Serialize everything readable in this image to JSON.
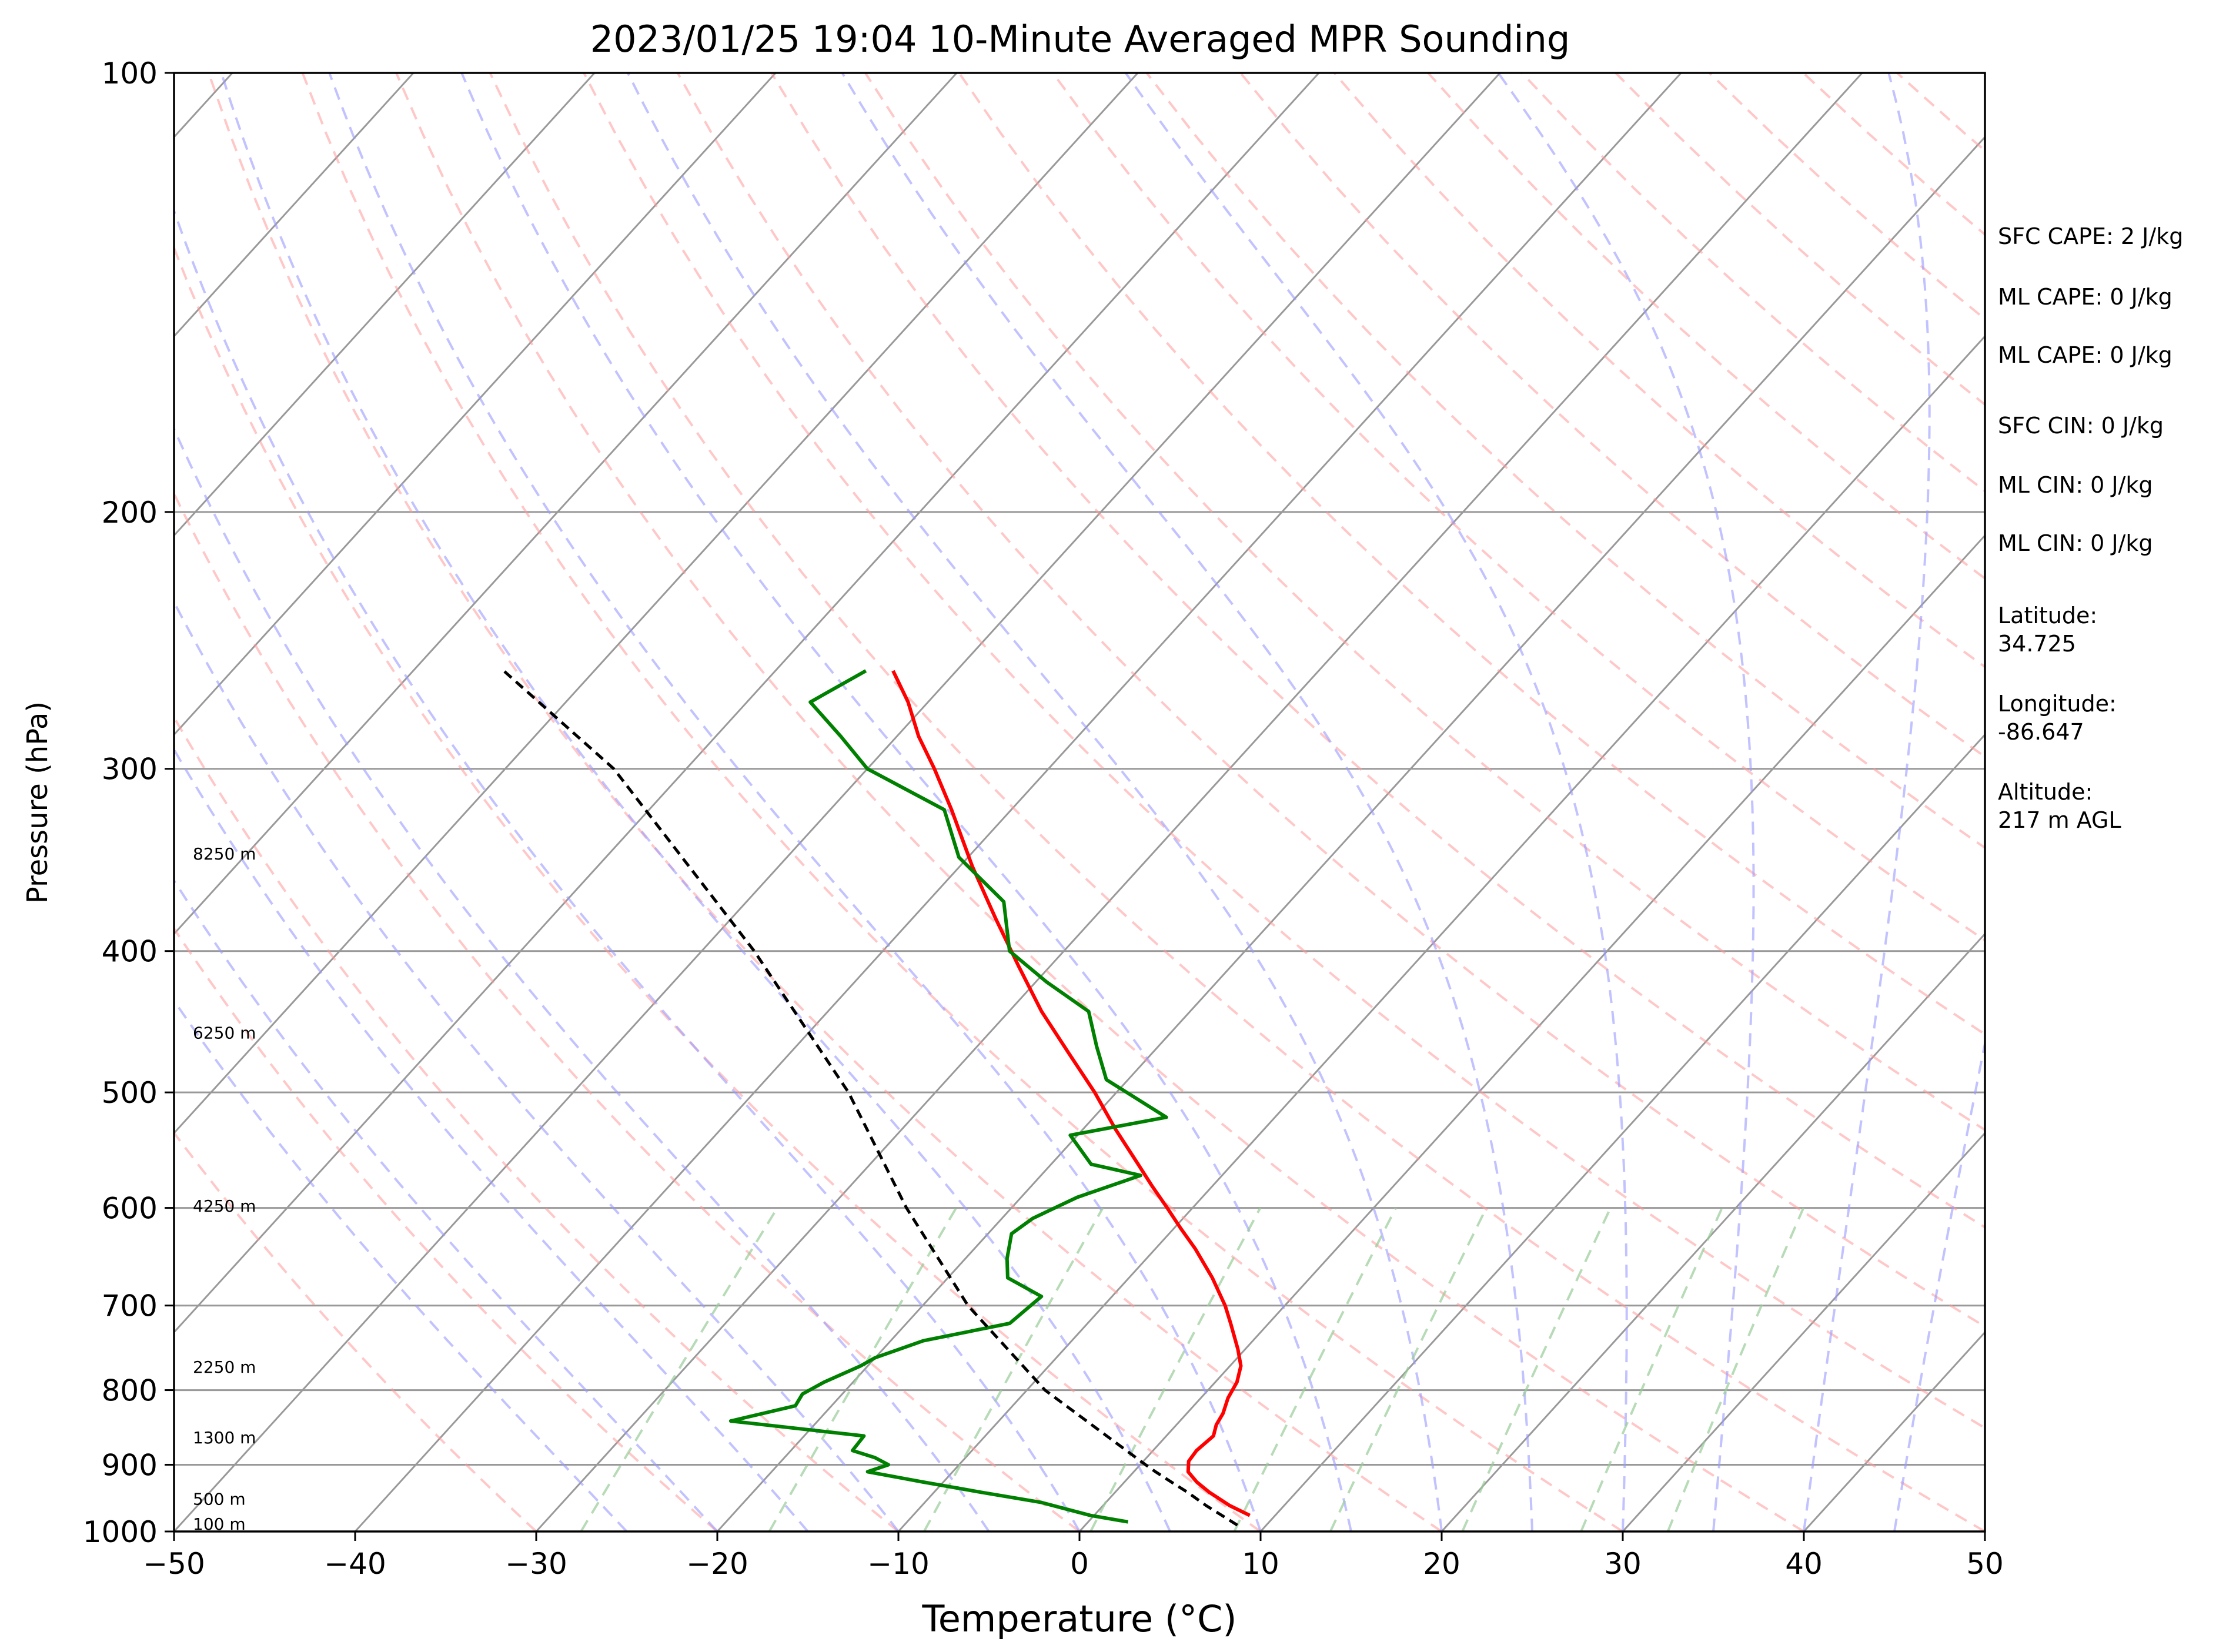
{
  "chart_data": {
    "type": "line",
    "title": "2023/01/25 19:04 10-Minute Averaged MPR Sounding",
    "xlabel": "Temperature (°C)",
    "ylabel": "Pressure (hPa)",
    "xlim": [
      -50,
      50
    ],
    "ylim": [
      1000,
      100
    ],
    "y_scale": "log",
    "skew": "skew-T",
    "grid": true,
    "x_ticks": [
      "−50",
      "−40",
      "−30",
      "−20",
      "−10",
      "0",
      "10",
      "20",
      "30",
      "40",
      "50"
    ],
    "y_ticks": [
      "100",
      "200",
      "300",
      "400",
      "500",
      "600",
      "700",
      "800",
      "900",
      "1000"
    ],
    "colors": {
      "temperature": "#ff0000",
      "dewpoint": "#008000",
      "parcel": "#000000",
      "dry_adiabats": "#ff9999",
      "moist_adiabats": "#9999ff",
      "mixing_ratio": "#99cc99",
      "isotherms": "#999999"
    },
    "series": [
      {
        "key": "temperature",
        "pressure": [
          975,
          960,
          940,
          925,
          910,
          895,
          880,
          860,
          845,
          830,
          810,
          790,
          770,
          750,
          720,
          700,
          670,
          640,
          620,
          600,
          580,
          560,
          530,
          500,
          470,
          440,
          410,
          380,
          350,
          320,
          300,
          285,
          270,
          257
        ],
        "values": [
          8.6,
          7.0,
          5.2,
          4.0,
          3.0,
          2.5,
          2.4,
          2.6,
          2.2,
          2.0,
          1.5,
          1.2,
          0.6,
          -0.4,
          -2.1,
          -3.3,
          -5.4,
          -7.8,
          -9.6,
          -11.4,
          -13.3,
          -15.2,
          -18.2,
          -21.2,
          -24.6,
          -28.2,
          -31.7,
          -35.4,
          -39.3,
          -43.3,
          -46.3,
          -48.8,
          -51.1,
          -53.5
        ]
      },
      {
        "key": "dewpoint",
        "pressure": [
          985,
          975,
          955,
          940,
          925,
          910,
          900,
          890,
          880,
          860,
          840,
          820,
          805,
          790,
          770,
          760,
          740,
          720,
          690,
          670,
          650,
          625,
          610,
          590,
          570,
          560,
          535,
          520,
          490,
          465,
          440,
          420,
          400,
          370,
          345,
          320,
          300,
          285,
          270,
          257
        ],
        "values": [
          2.2,
          -0.2,
          -3.6,
          -7.4,
          -11.1,
          -14.7,
          -13.9,
          -15.0,
          -16.6,
          -16.7,
          -24.8,
          -22.0,
          -22.2,
          -21.6,
          -20.4,
          -20.0,
          -18.2,
          -14.3,
          -13.9,
          -16.7,
          -17.7,
          -18.7,
          -18.3,
          -16.9,
          -14.5,
          -17.8,
          -20.4,
          -16.0,
          -21.2,
          -23.4,
          -25.6,
          -29.4,
          -33.0,
          -35.8,
          -40.5,
          -43.7,
          -50.0,
          -53.1,
          -56.5,
          -55.0
        ]
      },
      {
        "key": "parcel",
        "pressure": [
          990,
          960,
          940,
          925,
          910,
          900,
          800,
          700,
          600,
          500,
          400,
          300,
          257
        ],
        "values": [
          8.4,
          5.7,
          4.0,
          2.6,
          1.2,
          0.3,
          -9.0,
          -17.5,
          -25.8,
          -34.8,
          -47.1,
          -64.0,
          -75.0
        ]
      }
    ],
    "height_labels": [
      {
        "text": "100 m",
        "pressure": 988
      },
      {
        "text": "500 m",
        "pressure": 950
      },
      {
        "text": "1300 m",
        "pressure": 862
      },
      {
        "text": "2250 m",
        "pressure": 771
      },
      {
        "text": "4250 m",
        "pressure": 598
      },
      {
        "text": "6250 m",
        "pressure": 455
      },
      {
        "text": "8250 m",
        "pressure": 343
      }
    ],
    "annotations": {
      "sfc_cape": "SFC CAPE: 2 J/kg",
      "ml_cape_1": "ML CAPE: 0 J/kg",
      "ml_cape_2": "ML CAPE: 0 J/kg",
      "sfc_cin": "SFC CIN: 0 J/kg",
      "ml_cin_1": "ML CIN: 0 J/kg",
      "ml_cin_2": "ML CIN: 0 J/kg",
      "latitude_label": "Latitude:",
      "latitude_value": "34.725",
      "longitude_label": "Longitude:",
      "longitude_value": "-86.647",
      "altitude_label": "Altitude:",
      "altitude_value": "217 m AGL"
    }
  }
}
